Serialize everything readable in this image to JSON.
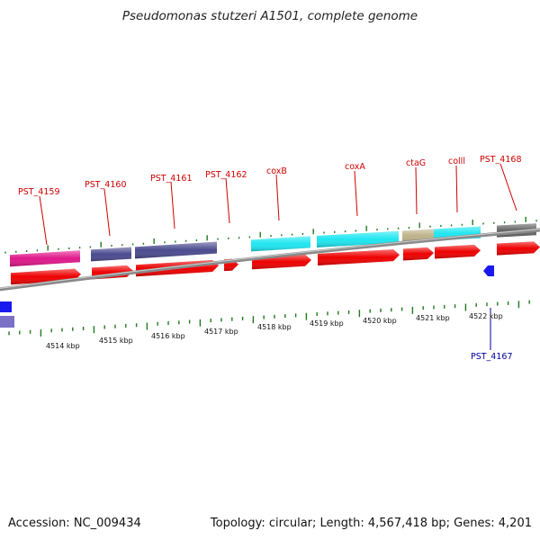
{
  "title": "Pseudomonas stutzeri A1501, complete genome",
  "accession_text": "Accession: NC_009434",
  "genome_info_text": "Topology: circular; Length: 4,567,418 bp; Genes: 4,201",
  "colors": {
    "cds": "#ee0000",
    "backbone": "#888888",
    "ticks": "#1f7a1f",
    "label_red": "#cc0000",
    "label_blue": "#000099",
    "cog_magenta": "#e0188a",
    "cog_indigo": "#4a4a90",
    "cog_cyan": "#1ee6f0",
    "cog_khaki": "#bdb38a",
    "cog_gray": "#666666",
    "reverse_blue": "#1a1aee",
    "cog_lavender": "#7a70c8"
  },
  "kbp_labels": [
    "4514 kbp",
    "4515 kbp",
    "4516 kbp",
    "4517 kbp",
    "4518 kbp",
    "4519 kbp",
    "4520 kbp",
    "4521 kbp",
    "4522 kbp"
  ],
  "gene_labels": [
    {
      "text": "PST_4159",
      "color": "red"
    },
    {
      "text": "PST_4160",
      "color": "red"
    },
    {
      "text": "PST_4161",
      "color": "red"
    },
    {
      "text": "PST_4162",
      "color": "red"
    },
    {
      "text": "coxB",
      "color": "red"
    },
    {
      "text": "coxA",
      "color": "red"
    },
    {
      "text": "ctaG",
      "color": "red"
    },
    {
      "text": "colll",
      "color": "red"
    },
    {
      "text": "PST_4168",
      "color": "red"
    },
    {
      "text": "PST_4167",
      "color": "blue"
    }
  ]
}
